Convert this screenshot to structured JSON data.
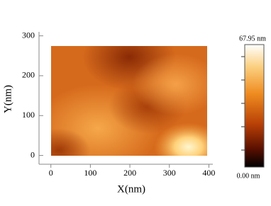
{
  "chart_data": {
    "type": "image",
    "xlabel": "X(nm)",
    "ylabel": "Y(nm)",
    "xlim": [
      -30,
      410
    ],
    "xticks": [
      0,
      100,
      200,
      300,
      400
    ],
    "ylim": [
      -22,
      310
    ],
    "yticks": [
      0,
      100,
      200,
      300
    ],
    "colorbar": {
      "max_label": "67.95 nm",
      "min_label": "0.00 nm"
    }
  }
}
